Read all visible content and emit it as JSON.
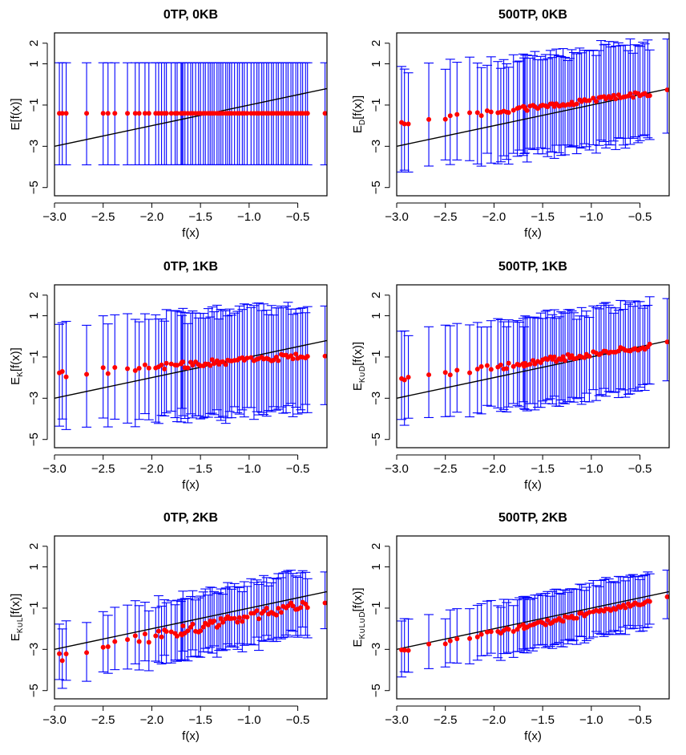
{
  "figure": {
    "description_note": "6-panel grid of error-bar scatter plots with identity line",
    "colors": {
      "points": "#ff0000",
      "errorbars": "#0000ff",
      "line": "#000000",
      "frame": "#000000"
    }
  },
  "chart_data": [
    {
      "id": "p1",
      "type": "scatter",
      "title": "0TP, 0KB",
      "xlabel": "f(x)",
      "ylabel_main": "E",
      "ylabel_sub": "",
      "ylabel_tail": "[f(x)]",
      "xlim": [
        -3.0,
        -0.2
      ],
      "ylim": [
        -5.4,
        2.5
      ],
      "xticks": [
        -3.0,
        -2.5,
        -2.0,
        -1.5,
        -1.0,
        -0.5
      ],
      "xtick_labels": [
        "−3.0",
        "−2.5",
        "−2.0",
        "−1.5",
        "−1.0",
        "−0.5"
      ],
      "yticks": [
        -5,
        -3,
        -1,
        1,
        2
      ],
      "ytick_labels": [
        "−5",
        "−3",
        "−1",
        "1",
        "2"
      ],
      "reference_line": {
        "slope": 1,
        "intercept": 0
      },
      "mode": "constant",
      "center": -1.4,
      "lower": -3.9,
      "upper": 1.05
    },
    {
      "id": "p2",
      "type": "scatter",
      "title": "500TP, 0KB",
      "xlabel": "f(x)",
      "ylabel_main": "E",
      "ylabel_sub": "D",
      "ylabel_tail": "[f(x)]",
      "xlim": [
        -3.0,
        -0.2
      ],
      "ylim": [
        -5.4,
        2.5
      ],
      "xticks": [
        -3.0,
        -2.5,
        -2.0,
        -1.5,
        -1.0,
        -0.5
      ],
      "xtick_labels": [
        "−3.0",
        "−2.5",
        "−2.0",
        "−1.5",
        "−1.0",
        "−0.5"
      ],
      "yticks": [
        -5,
        -3,
        -1,
        1,
        2
      ],
      "ytick_labels": [
        "−5",
        "−3",
        "−1",
        "1",
        "2"
      ],
      "reference_line": {
        "slope": 1,
        "intercept": 0
      },
      "mode": "trend",
      "intercept": -0.2,
      "slope": 0.57,
      "noise": 0.12,
      "low_width": 2.3,
      "high_width": 2.5
    },
    {
      "id": "p3",
      "type": "scatter",
      "title": "0TP, 1KB",
      "xlabel": "f(x)",
      "ylabel_main": "E",
      "ylabel_sub": "K",
      "ylabel_tail": "[f(x)]",
      "xlim": [
        -3.0,
        -0.2
      ],
      "ylim": [
        -5.4,
        2.5
      ],
      "xticks": [
        -3.0,
        -2.5,
        -2.0,
        -1.5,
        -1.0,
        -0.5
      ],
      "xtick_labels": [
        "−3.0",
        "−2.5",
        "−2.0",
        "−1.5",
        "−1.0",
        "−0.5"
      ],
      "yticks": [
        -5,
        -3,
        -1,
        1,
        2
      ],
      "ytick_labels": [
        "−5",
        "−3",
        "−1",
        "1",
        "2"
      ],
      "reference_line": {
        "slope": 1,
        "intercept": 0
      },
      "mode": "trend",
      "intercept": -0.8,
      "slope": 0.35,
      "noise": 0.16,
      "low_width": 2.6,
      "high_width": 2.5
    },
    {
      "id": "p4",
      "type": "scatter",
      "title": "500TP, 1KB",
      "xlabel": "f(x)",
      "ylabel_main": "E",
      "ylabel_sub": "K∪D",
      "ylabel_tail": "[f(x)]",
      "xlim": [
        -3.0,
        -0.2
      ],
      "ylim": [
        -5.4,
        2.5
      ],
      "xticks": [
        -3.0,
        -2.5,
        -2.0,
        -1.5,
        -1.0,
        -0.5
      ],
      "xtick_labels": [
        "−3.0",
        "−2.5",
        "−2.0",
        "−1.5",
        "−1.0",
        "−0.5"
      ],
      "yticks": [
        -5,
        -3,
        -1,
        1,
        2
      ],
      "ytick_labels": [
        "−5",
        "−3",
        "−1",
        "1",
        "2"
      ],
      "reference_line": {
        "slope": 1,
        "intercept": 0
      },
      "mode": "trend",
      "intercept": -0.2,
      "slope": 0.65,
      "noise": 0.15,
      "low_width": 2.1,
      "high_width": 2.2
    },
    {
      "id": "p5",
      "type": "scatter",
      "title": "0TP, 2KB",
      "xlabel": "f(x)",
      "ylabel_main": "E",
      "ylabel_sub": "K∪L",
      "ylabel_tail": "[f(x)]",
      "xlim": [
        -3.0,
        -0.2
      ],
      "ylim": [
        -5.4,
        2.5
      ],
      "xticks": [
        -3.0,
        -2.5,
        -2.0,
        -1.5,
        -1.0,
        -0.5
      ],
      "xtick_labels": [
        "−3.0",
        "−2.5",
        "−2.0",
        "−1.5",
        "−1.0",
        "−0.5"
      ],
      "yticks": [
        -5,
        -3,
        -1,
        1,
        2
      ],
      "ytick_labels": [
        "−5",
        "−3",
        "−1",
        "1",
        "2"
      ],
      "reference_line": {
        "slope": 1,
        "intercept": 0
      },
      "mode": "trend",
      "intercept": -0.4,
      "slope": 1.0,
      "noise": 0.25,
      "low_width": 1.4,
      "high_width": 1.6
    },
    {
      "id": "p6",
      "type": "scatter",
      "title": "500TP, 2KB",
      "xlabel": "f(x)",
      "ylabel_main": "E",
      "ylabel_sub": "K∪L∪D",
      "ylabel_tail": "[f(x)]",
      "xlim": [
        -3.0,
        -0.2
      ],
      "ylim": [
        -5.4,
        2.5
      ],
      "xticks": [
        -3.0,
        -2.5,
        -2.0,
        -1.5,
        -1.0,
        -0.5
      ],
      "xtick_labels": [
        "−3.0",
        "−2.5",
        "−2.0",
        "−1.5",
        "−1.0",
        "−0.5"
      ],
      "yticks": [
        -5,
        -3,
        -1,
        1,
        2
      ],
      "ytick_labels": [
        "−5",
        "−3",
        "−1",
        "1",
        "2"
      ],
      "reference_line": {
        "slope": 1,
        "intercept": 0
      },
      "mode": "trend",
      "intercept": -0.3,
      "slope": 0.95,
      "noise": 0.12,
      "low_width": 1.2,
      "high_width": 1.4
    }
  ],
  "x_values": [
    -2.95,
    -2.92,
    -2.88,
    -2.67,
    -2.5,
    -2.45,
    -2.38,
    -2.25,
    -2.17,
    -2.13,
    -2.07,
    -2.03,
    -1.96,
    -1.93,
    -1.9,
    -1.87,
    -1.85,
    -1.8,
    -1.76,
    -1.74,
    -1.7,
    -1.69,
    -1.68,
    -1.66,
    -1.63,
    -1.6,
    -1.58,
    -1.55,
    -1.52,
    -1.5,
    -1.47,
    -1.45,
    -1.42,
    -1.4,
    -1.38,
    -1.36,
    -1.33,
    -1.31,
    -1.29,
    -1.27,
    -1.24,
    -1.22,
    -1.2,
    -1.18,
    -1.15,
    -1.12,
    -1.1,
    -1.07,
    -1.05,
    -1.02,
    -0.98,
    -0.95,
    -0.92,
    -0.9,
    -0.87,
    -0.85,
    -0.82,
    -0.8,
    -0.77,
    -0.75,
    -0.72,
    -0.7,
    -0.67,
    -0.65,
    -0.62,
    -0.6,
    -0.57,
    -0.55,
    -0.52,
    -0.5,
    -0.47,
    -0.45,
    -0.42,
    -0.4,
    -0.22
  ]
}
